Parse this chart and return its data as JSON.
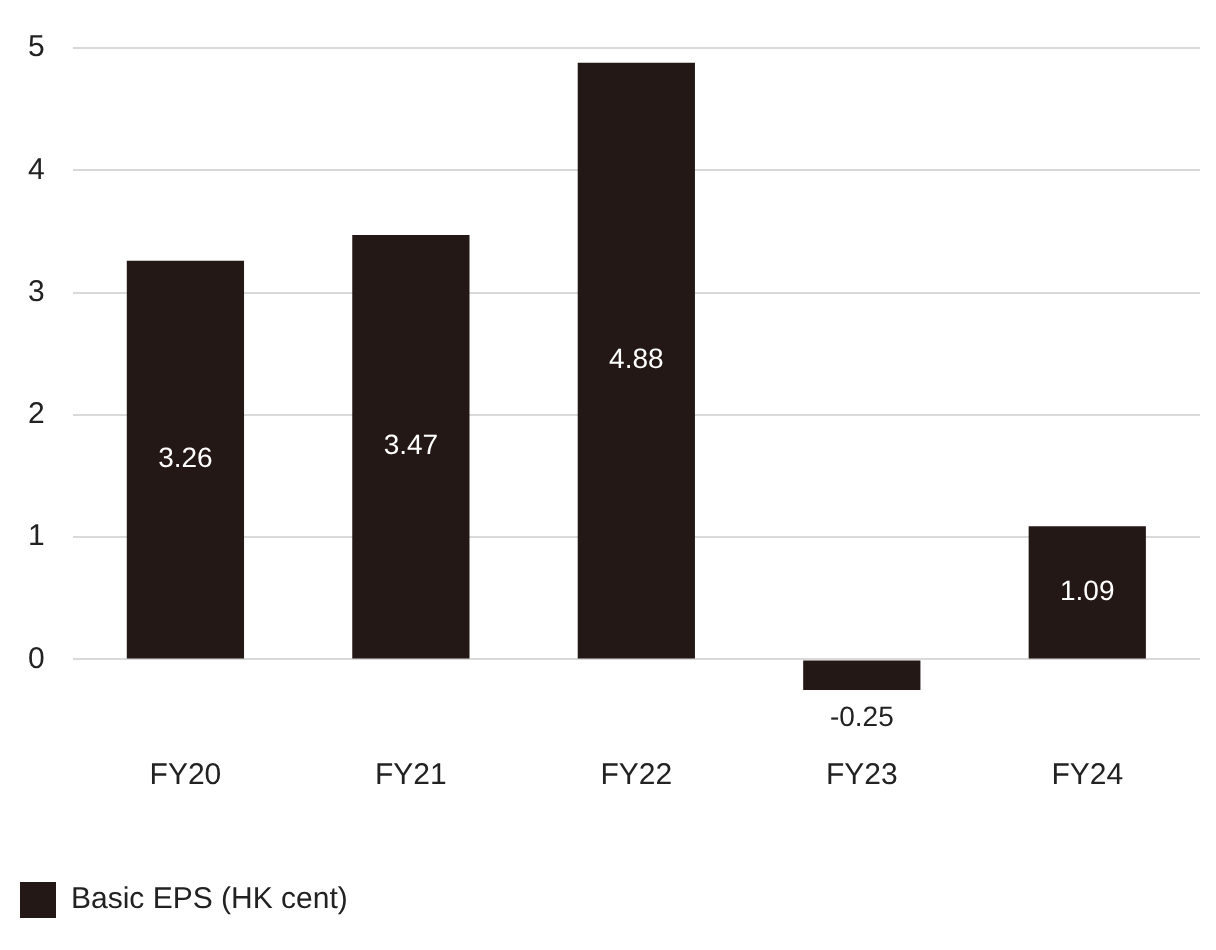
{
  "chart_data": {
    "type": "bar",
    "categories": [
      "FY20",
      "FY21",
      "FY22",
      "FY23",
      "FY24"
    ],
    "series": [
      {
        "name": "Basic EPS (HK cent)",
        "color": "#231815",
        "values": [
          3.26,
          3.47,
          4.88,
          -0.25,
          1.09
        ]
      }
    ],
    "ylim": [
      -0.25,
      5
    ],
    "yticks": [
      0,
      1,
      2,
      3,
      4,
      5
    ],
    "grid": "y",
    "legend": "bottom left",
    "data_labels": true
  }
}
